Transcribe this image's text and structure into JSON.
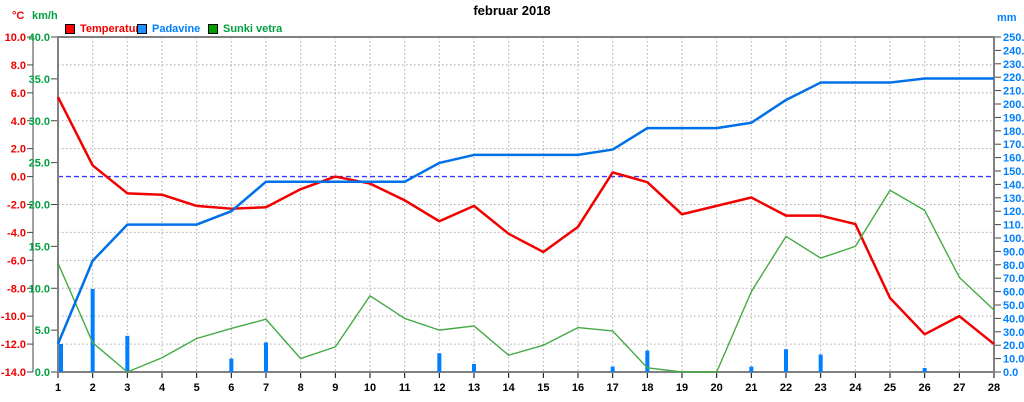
{
  "title": "februar 2018",
  "units": {
    "temp": "°C",
    "wind": "km/h",
    "precip": "mm"
  },
  "legend": {
    "temperatura": "Temperatura",
    "padavine": "Padavine",
    "sunki_vetra": "Sunki vetra"
  },
  "colors": {
    "temp_label": "#f20000",
    "temp_line": "#f20000",
    "wind_label": "#00a040",
    "wind_line": "#44aa44",
    "precip_label": "#0080ff",
    "precip_line": "#0070e8",
    "precip_bar": "#0080ff",
    "legend_swatch_temp": "#ff0000",
    "legend_swatch_precip": "#1e90ff",
    "legend_swatch_wind": "#00a000",
    "grid": "#aaaaaa",
    "frame": "#808080",
    "zero_line": "#3b3bff",
    "axis_tick": "#444444",
    "day_label": "#000000"
  },
  "chart_data": {
    "type": "line",
    "title": "februar 2018",
    "x_days": [
      1,
      2,
      3,
      4,
      5,
      6,
      7,
      8,
      9,
      10,
      11,
      12,
      13,
      14,
      15,
      16,
      17,
      18,
      19,
      20,
      21,
      22,
      23,
      24,
      25,
      26,
      27,
      28
    ],
    "series": [
      {
        "id": "temperatura",
        "legend_label": "Temperatura",
        "type": "line",
        "unit": "°C",
        "values": [
          5.7,
          0.8,
          -1.2,
          -1.3,
          -2.1,
          -2.3,
          -2.2,
          -0.9,
          0.0,
          -0.5,
          -1.7,
          -3.2,
          -2.1,
          -4.1,
          -5.4,
          -3.6,
          0.3,
          -0.4,
          -2.7,
          -2.1,
          -1.5,
          -2.8,
          -2.8,
          -3.4,
          -8.7,
          -11.3,
          -10.0,
          -12.0
        ]
      },
      {
        "id": "padavine-cumulative",
        "legend_label": "Padavine",
        "type": "line",
        "unit": "mm",
        "values": [
          21,
          83,
          110,
          110,
          110,
          120,
          142,
          142,
          142,
          142,
          142,
          156,
          162,
          162,
          162,
          162,
          166,
          182,
          182,
          182,
          186,
          203,
          216,
          216,
          216,
          219,
          219,
          219
        ]
      },
      {
        "id": "padavine-daily-bars",
        "legend_label": "Padavine",
        "type": "bar",
        "unit": "mm",
        "values": [
          21,
          62,
          27,
          0,
          0,
          10,
          22,
          0,
          0,
          0,
          0,
          14,
          6,
          0,
          0,
          0,
          4,
          16,
          0,
          0,
          4,
          17,
          13,
          0,
          0,
          3,
          0,
          0
        ]
      },
      {
        "id": "sunki-vetra",
        "legend_label": "Sunki vetra",
        "type": "line",
        "unit": "km/h",
        "values": [
          13.0,
          3.5,
          0.0,
          1.7,
          4.0,
          5.2,
          6.3,
          1.6,
          3.0,
          9.1,
          6.4,
          5.0,
          5.5,
          2.0,
          3.2,
          5.3,
          4.9,
          0.5,
          0.0,
          0.0,
          9.6,
          16.2,
          13.6,
          15.0,
          21.7,
          19.3,
          11.3,
          7.4
        ]
      }
    ],
    "axes": {
      "temp": {
        "unit": "°C",
        "min": -14,
        "max": 10,
        "step": 2,
        "side": "outer-left"
      },
      "wind": {
        "unit": "km/h",
        "min": 0,
        "max": 40,
        "step": 5,
        "side": "inner-left"
      },
      "precip": {
        "unit": "mm",
        "min": 0,
        "max": 250,
        "step": 10,
        "side": "right"
      }
    },
    "zero_line": {
      "axis": "temp",
      "value": 0,
      "style": "dashed"
    },
    "grid": {
      "horizontal_step_c": 2,
      "vertical_step_days": 1,
      "style": "dotted"
    },
    "legend_position": "top-left"
  }
}
